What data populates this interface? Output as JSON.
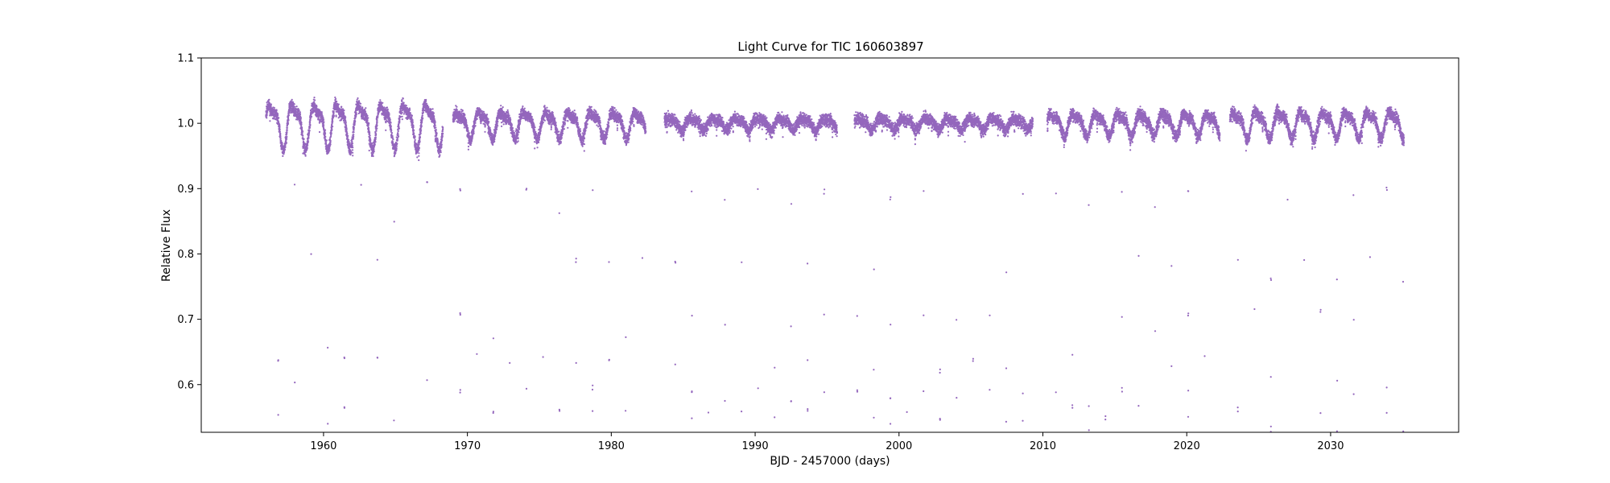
{
  "chart_data": {
    "type": "scatter",
    "title": "Light Curve for TIC 160603897",
    "xlabel": "BJD - 2457000 (days)",
    "ylabel": "Relative Flux",
    "xlim": [
      1951.5,
      2038.9
    ],
    "ylim": [
      0.527,
      1.1
    ],
    "xticks": [
      1960,
      1970,
      1980,
      1990,
      2000,
      2010,
      2020,
      2030
    ],
    "yticks": [
      0.6,
      0.7,
      0.8,
      0.9,
      1.0,
      1.1
    ],
    "xtick_labels": [
      "1960",
      "1970",
      "1980",
      "1990",
      "2000",
      "2010",
      "2020",
      "2030"
    ],
    "ytick_labels": [
      "0.6",
      "0.7",
      "0.8",
      "0.9",
      "1.0",
      "1.1"
    ],
    "grid": false,
    "legend": "none",
    "series_color": "#9467bd",
    "baseline_flux": 1.0,
    "eclipse_depth_min_flux": 0.545,
    "eclipse_period_days": 1.15,
    "observation_segments": [
      [
        1956.0,
        1968.3
      ],
      [
        1969.0,
        1982.4
      ],
      [
        1983.7,
        1995.7
      ],
      [
        1996.9,
        2009.3
      ],
      [
        2010.3,
        2022.3
      ],
      [
        2023.0,
        2035.1
      ]
    ],
    "variability_amplitude_by_segment": [
      0.03,
      0.018,
      0.008,
      0.008,
      0.015,
      0.018
    ]
  }
}
